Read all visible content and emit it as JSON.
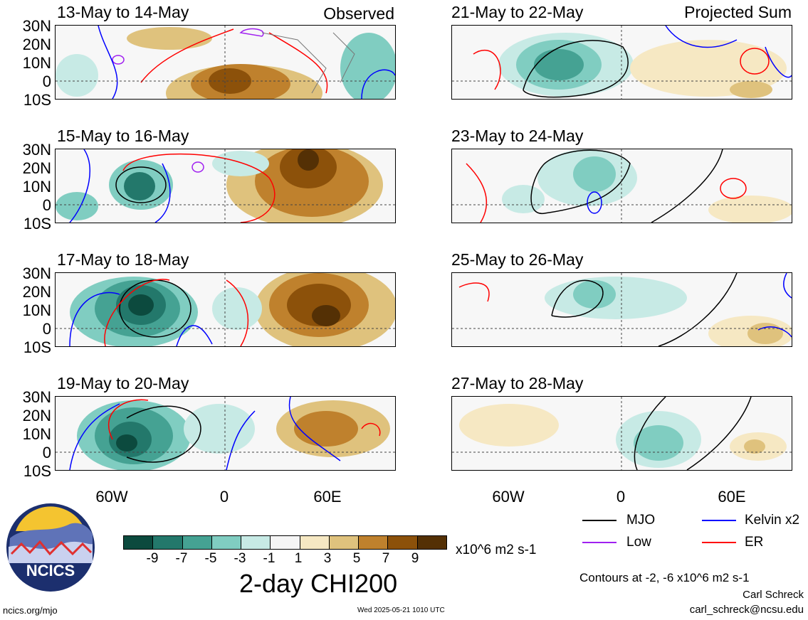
{
  "panels": [
    {
      "title": "13-May to 14-May",
      "note": "Observed"
    },
    {
      "title": "21-May to 22-May",
      "note": "Projected Sum"
    },
    {
      "title": "15-May to 16-May",
      "note": ""
    },
    {
      "title": "23-May to 24-May",
      "note": ""
    },
    {
      "title": "17-May to 18-May",
      "note": ""
    },
    {
      "title": "25-May to 26-May",
      "note": ""
    },
    {
      "title": "19-May to 20-May",
      "note": ""
    },
    {
      "title": "27-May to 28-May",
      "note": ""
    }
  ],
  "lat_labels": [
    "30N",
    "20N",
    "10N",
    "0",
    "10S"
  ],
  "lon_labels": [
    "60W",
    "0",
    "60E"
  ],
  "colorbar": {
    "labels": [
      "-9",
      "-7",
      "-5",
      "-3",
      "-1",
      "1",
      "3",
      "5",
      "7",
      "9"
    ],
    "colors": [
      "#0c4a3e",
      "#23786b",
      "#45a293",
      "#80cdc1",
      "#c7eae5",
      "#f5f5f5",
      "#f6e8c3",
      "#dfc27d",
      "#bf812d",
      "#8c510a",
      "#543005"
    ],
    "units": "x10^6 m2 s-1",
    "title": "2-day CHI200"
  },
  "legend": [
    {
      "label": "MJO",
      "color": "#000000"
    },
    {
      "label": "Kelvin x2",
      "color": "#0000ff"
    },
    {
      "label": "Low",
      "color": "#a020f0"
    },
    {
      "label": "ER",
      "color": "#ff0000"
    }
  ],
  "contours_note": "Contours at -2, -6 x10^6 m2 s-1",
  "author": "Carl Schreck",
  "email": "carl_schreck@ncsu.edu",
  "logo_text": "NCICS",
  "url": "ncics.org/mjo",
  "timestamp": "Wed 2025-05-21 1010 UTC"
}
